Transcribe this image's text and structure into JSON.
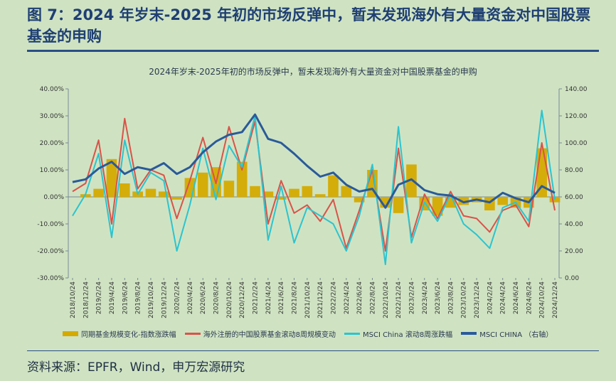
{
  "figure": {
    "title": "图 7：2024 年岁末-2025 年初的市场反弹中，暂未发现海外有大量资金对中国股票基金的申购",
    "source": "资料来源：EPFR，Wind，申万宏源研究"
  },
  "colors": {
    "bar": "#d4aa00",
    "red_line": "#d9534a",
    "cyan_line": "#2cc4cf",
    "blue_line": "#2a5a9a"
  },
  "chart_data": {
    "type": "bar+line",
    "title": "2024年岁末-2025年初的市场反弹中，暂未发现海外有大量资金对中国股票基金的申购",
    "x_tick_labels": [
      "2018/10/24",
      "2018/12/24",
      "2019/2/24",
      "2019/4/24",
      "2019/6/24",
      "2019/8/24",
      "2019/10/24",
      "2019/12/24",
      "2020/2/24",
      "2020/4/24",
      "2020/6/24",
      "2020/8/24",
      "2020/10/24",
      "2020/12/24",
      "2021/2/24",
      "2021/4/24",
      "2021/6/24",
      "2021/8/24",
      "2021/10/24",
      "2021/12/24",
      "2022/2/24",
      "2022/4/24",
      "2022/6/24",
      "2022/8/24",
      "2022/10/24",
      "2022/12/24",
      "2023/2/24",
      "2023/4/24",
      "2023/6/24",
      "2023/8/24",
      "2023/10/24",
      "2023/12/24",
      "2024/2/24",
      "2024/4/24",
      "2024/6/24",
      "2024/8/24",
      "2024/10/24",
      "2024/12/24"
    ],
    "y_left": {
      "min": -30,
      "max": 40,
      "step": 10,
      "tick_labels": [
        "-30.00%",
        "-20.00%",
        "-10.00%",
        "0.00%",
        "10.00%",
        "20.00%",
        "30.00%",
        "40.00%"
      ]
    },
    "y_right": {
      "min": 0,
      "max": 140,
      "step": 20,
      "tick_labels": [
        "0.00",
        "20.00",
        "40.00",
        "60.00",
        "80.00",
        "100.00",
        "120.00",
        "140.00"
      ]
    },
    "series": [
      {
        "name": "同期基金规模变化-指数涨跌幅",
        "kind": "bar",
        "axis": "left",
        "values": [
          0,
          1,
          3,
          14,
          5,
          2,
          3,
          2,
          -1,
          7,
          9,
          11,
          6,
          13,
          4,
          2,
          -1,
          3,
          4,
          1,
          8,
          4,
          -2,
          10,
          -4,
          -6,
          12,
          -5,
          -7,
          -4,
          -3,
          -2,
          -5,
          -3,
          -4,
          -4,
          18,
          -2
        ]
      },
      {
        "name": "海外注册的中国股票基金滚动8周规模变动",
        "kind": "line",
        "axis": "left",
        "values": [
          2,
          5,
          21,
          -10,
          29,
          3,
          10,
          8,
          -8,
          6,
          22,
          5,
          26,
          10,
          28,
          -10,
          6,
          -6,
          -3,
          -9,
          -1,
          -19,
          -5,
          10,
          -20,
          18,
          -15,
          1,
          -8,
          2,
          -7,
          -8,
          -13,
          -5,
          -3,
          -11,
          20,
          -5
        ]
      },
      {
        "name": "MSCI China 滚动8周涨跌幅",
        "kind": "line",
        "axis": "left",
        "values": [
          -7,
          1,
          16,
          -15,
          21,
          1,
          9,
          6,
          -20,
          -3,
          18,
          -1,
          19,
          11,
          30,
          -16,
          4,
          -17,
          -4,
          -7,
          -10,
          -20,
          -7,
          12,
          -25,
          26,
          -17,
          -2,
          -9,
          1,
          -10,
          -14,
          -19,
          -4,
          -2,
          -9,
          32,
          -1
        ]
      },
      {
        "name": "MSCI CHINA  （右轴）",
        "kind": "line",
        "axis": "right",
        "values": [
          71,
          73,
          81,
          86,
          77,
          82,
          80,
          85,
          77,
          82,
          93,
          101,
          106,
          108,
          121,
          103,
          100,
          92,
          83,
          75,
          78,
          69,
          64,
          66,
          52,
          69,
          73,
          65,
          62,
          61,
          56,
          58,
          56,
          63,
          59,
          56,
          68,
          63
        ]
      }
    ],
    "legend_position": "bottom",
    "grid": false
  }
}
